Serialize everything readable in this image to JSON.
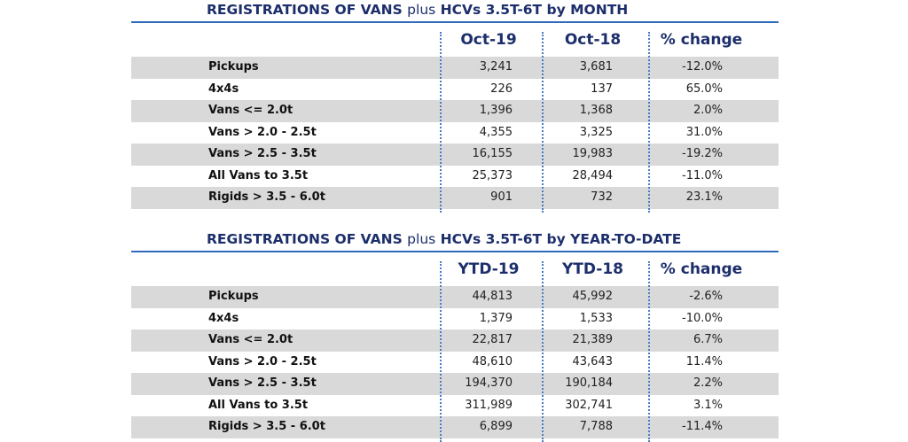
{
  "chart_data": [
    {
      "type": "table",
      "title_bold_1": "REGISTRATIONS OF VANS",
      "title_plus": "plus",
      "title_bold_2": "HCVs 3.5T-6T by MONTH",
      "columns": [
        "Oct-19",
        "Oct-18",
        "% change"
      ],
      "rows": [
        {
          "label": "Pickups",
          "values": [
            "3,241",
            "3,681",
            "-12.0%"
          ]
        },
        {
          "label": "4x4s",
          "values": [
            "226",
            "137",
            "65.0%"
          ]
        },
        {
          "label": "Vans <= 2.0t",
          "values": [
            "1,396",
            "1,368",
            "2.0%"
          ]
        },
        {
          "label": "Vans > 2.0 - 2.5t",
          "values": [
            "4,355",
            "3,325",
            "31.0%"
          ]
        },
        {
          "label": "Vans > 2.5 - 3.5t",
          "values": [
            "16,155",
            "19,983",
            "-19.2%"
          ]
        },
        {
          "label": "All Vans to 3.5t",
          "values": [
            "25,373",
            "28,494",
            "-11.0%"
          ]
        },
        {
          "label": "Rigids > 3.5 - 6.0t",
          "values": [
            "901",
            "732",
            "23.1%"
          ]
        }
      ]
    },
    {
      "type": "table",
      "title_bold_1": "REGISTRATIONS OF VANS",
      "title_plus": "plus",
      "title_bold_2": "HCVs 3.5T-6T by YEAR-TO-DATE",
      "columns": [
        "YTD-19",
        "YTD-18",
        "% change"
      ],
      "rows": [
        {
          "label": "Pickups",
          "values": [
            "44,813",
            "45,992",
            "-2.6%"
          ]
        },
        {
          "label": "4x4s",
          "values": [
            "1,379",
            "1,533",
            "-10.0%"
          ]
        },
        {
          "label": "Vans <= 2.0t",
          "values": [
            "22,817",
            "21,389",
            "6.7%"
          ]
        },
        {
          "label": "Vans > 2.0 - 2.5t",
          "values": [
            "48,610",
            "43,643",
            "11.4%"
          ]
        },
        {
          "label": "Vans > 2.5 - 3.5t",
          "values": [
            "194,370",
            "190,184",
            "2.2%"
          ]
        },
        {
          "label": "All Vans to 3.5t",
          "values": [
            "311,989",
            "302,741",
            "3.1%"
          ]
        },
        {
          "label": "Rigids > 3.5 - 6.0t",
          "values": [
            "6,899",
            "7,788",
            "-11.4%"
          ]
        }
      ]
    }
  ]
}
